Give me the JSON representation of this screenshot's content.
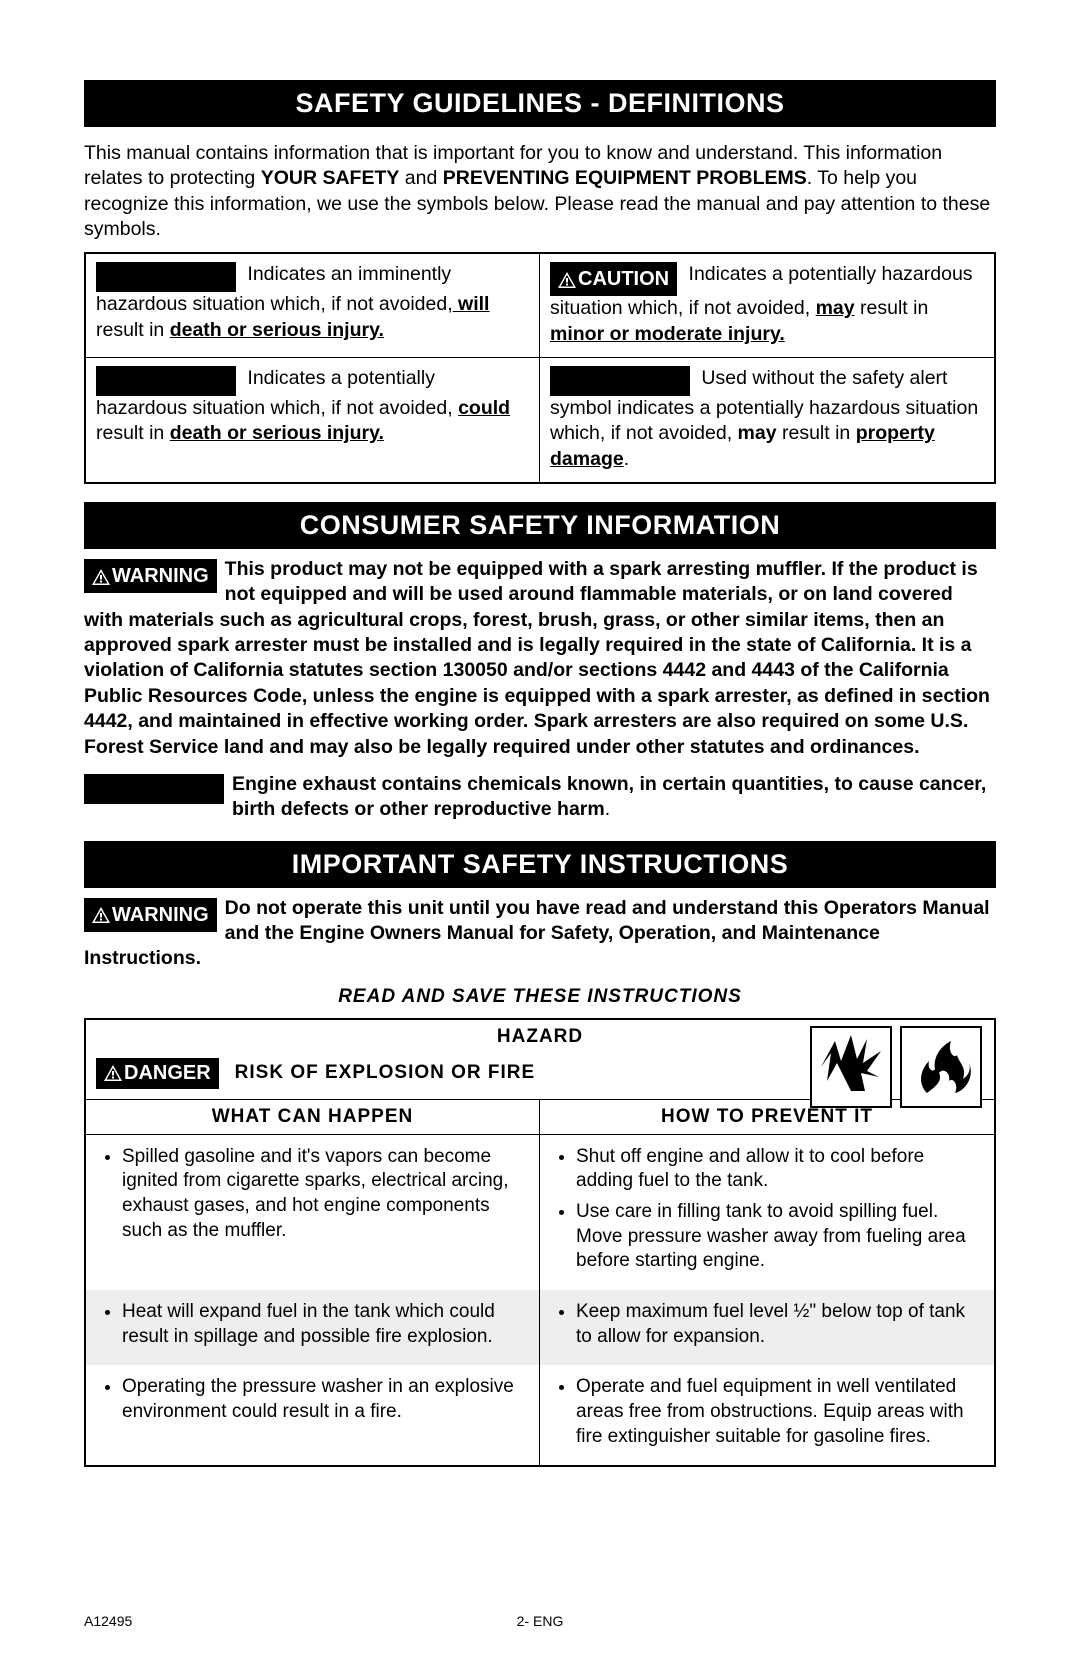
{
  "section1": {
    "title": "SAFETY GUIDELINES - DEFINITIONS",
    "intro_p1": "This manual contains information that is important for you to know and understand. This information relates to protecting ",
    "intro_b1": "YOUR SAFETY",
    "intro_mid": " and ",
    "intro_b2": "PREVENTING EQUIPMENT PROBLEMS",
    "intro_p2": ". To help you recognize this information, we use the symbols below. Please read the manual and pay attention to these symbols."
  },
  "defs": {
    "d1": {
      "text1": "Indicates an imminently hazardous situation which, if not avoided,",
      "ub1": " will",
      "text2": " result in ",
      "ub2": "death or serious injury."
    },
    "d2": {
      "label": "CAUTION",
      "text1": "Indicates a potentially hazardous situation which, if not avoided, ",
      "ub1": "may",
      "text2": " result in ",
      "ub2": "minor or moderate injury."
    },
    "d3": {
      "text1": "Indicates a potentially hazardous situation which, if not avoided, ",
      "ub1": "could",
      "text2": " result in ",
      "ub2": "death or serious injury."
    },
    "d4": {
      "text1": "Used without the safety alert symbol indicates a potentially hazardous situation which, if not avoided, ",
      "ub1": "may",
      "text2": " result in ",
      "ub2": "property damage",
      "tail": "."
    }
  },
  "section2": {
    "title": "CONSUMER SAFETY INFORMATION",
    "warning_label": "WARNING",
    "warning_text": "This product may not be equipped with a spark arresting muffler. If the product is not equipped and will be used around flammable materials, or on land covered with materials such as agricultural crops, forest, brush, grass, or other similar items, then an approved spark arrester must be installed and is legally required in the state of California. It is a violation of California statutes section 130050 and/or sections 4442 and 4443 of the California Public Resources Code, unless the engine is equipped with a spark arrester, as defined in section 4442, and maintained in effective working order. Spark arresters are also required on some U.S. Forest Service land and may also be legally required under other statutes and ordinances.",
    "danger_text_a": "Engine exhaust contains chemicals known, in certain quantities, to cause cancer, birth defects or other reproductive harm",
    "danger_text_b": "."
  },
  "section3": {
    "title": "IMPORTANT SAFETY INSTRUCTIONS",
    "warning_label": "WARNING",
    "warning_text": "Do not operate this unit until you have read and understand this Operators Manual and the Engine Owners Manual for Safety, Operation, and Maintenance Instructions.",
    "read_save": "READ AND SAVE THESE INSTRUCTIONS"
  },
  "hazard": {
    "hazard_label": "HAZARD",
    "danger_label": "DANGER",
    "risk_title": "RISK OF EXPLOSION OR FIRE",
    "col1": "WHAT CAN HAPPEN",
    "col2": "HOW TO PREVENT IT",
    "rows": [
      {
        "left": [
          "Spilled gasoline and it's vapors can become ignited from cigarette sparks, electrical arcing, exhaust gases, and hot engine components such as the muffler."
        ],
        "right": [
          "Shut off engine and allow it to cool before adding fuel to the tank.",
          "Use care in filling tank to avoid spilling fuel. Move pressure washer away from fueling area before starting engine."
        ]
      },
      {
        "left": [
          "Heat will expand fuel in the tank which could  result in spillage and possible fire explosion."
        ],
        "right": [
          "Keep maximum fuel level ½\" below top of tank to allow for expansion."
        ]
      },
      {
        "left": [
          "Operating the pressure washer in an explosive environment could result in a fire."
        ],
        "right": [
          "Operate and fuel equipment in well ventilated areas free from obstructions. Equip areas with fire extinguisher suitable for gasoline fires."
        ]
      }
    ]
  },
  "footer": {
    "left": "A12495",
    "center": "2- ENG"
  }
}
